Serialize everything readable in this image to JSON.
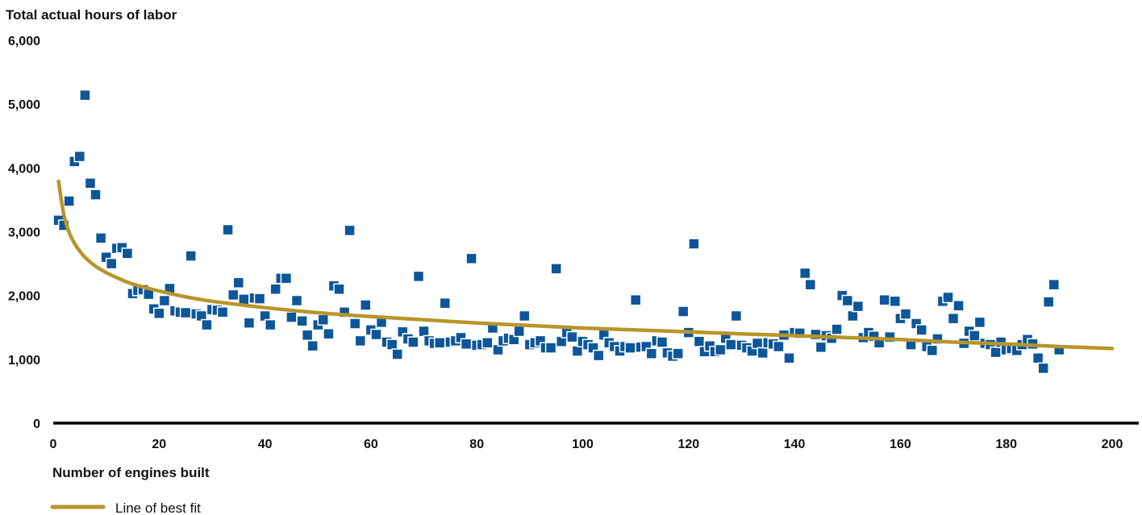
{
  "chart_data": {
    "type": "scatter",
    "title": "",
    "ylabel": "Total actual hours of labor",
    "xlabel": "Number of engines built",
    "xlim": [
      0,
      200
    ],
    "ylim": [
      0,
      6000
    ],
    "xticks": [
      "0",
      "20",
      "40",
      "60",
      "80",
      "100",
      "120",
      "140",
      "160",
      "180",
      "200"
    ],
    "yticks": [
      "0",
      "1,000",
      "2,000",
      "3,000",
      "4,000",
      "5,000",
      "6,000"
    ],
    "grid": false,
    "legend_position": "bottom-left",
    "colors": {
      "points": "#0d5699",
      "fit": "#b8952a",
      "axis": "#000000"
    },
    "series": [
      {
        "type": "scatter",
        "x": [
          1,
          2,
          3,
          4,
          5,
          6,
          7,
          8,
          9,
          10,
          11,
          12,
          13,
          14,
          15,
          16,
          17,
          18,
          19,
          20,
          21,
          22,
          23,
          24,
          25,
          26,
          27,
          28,
          29,
          30,
          31,
          32,
          33,
          34,
          35,
          36,
          37,
          38,
          39,
          40,
          41,
          42,
          43,
          44,
          45,
          46,
          47,
          48,
          49,
          50,
          51,
          52,
          53,
          54,
          55,
          56,
          57,
          58,
          59,
          60,
          61,
          62,
          63,
          64,
          65,
          66,
          67,
          68,
          69,
          70,
          71,
          72,
          73,
          74,
          75,
          76,
          77,
          78,
          79,
          80,
          81,
          82,
          83,
          84,
          85,
          86,
          87,
          88,
          89,
          90,
          91,
          92,
          93,
          94,
          95,
          96,
          97,
          98,
          99,
          100,
          101,
          102,
          103,
          104,
          105,
          106,
          107,
          108,
          109,
          110,
          111,
          112,
          113,
          114,
          115,
          116,
          117,
          118,
          119,
          120,
          121,
          122,
          123,
          124,
          125,
          126,
          127,
          128,
          129,
          130,
          131,
          132,
          133,
          134,
          135,
          136,
          137,
          138,
          139,
          140,
          141,
          142,
          143,
          144,
          145,
          146,
          147,
          148,
          149,
          150,
          151,
          152,
          153,
          154,
          155,
          156,
          157,
          158,
          159,
          160,
          161,
          162,
          163,
          164,
          165,
          166,
          167,
          168,
          169,
          170,
          171,
          172,
          173,
          174,
          175,
          176,
          177,
          178,
          179,
          180,
          181,
          182,
          183,
          184,
          185,
          186,
          187,
          188,
          189,
          190
        ],
        "y": [
          3180,
          3100,
          3480,
          4100,
          4180,
          5140,
          3760,
          3580,
          2900,
          2600,
          2500,
          2740,
          2750,
          2660,
          2030,
          2080,
          2090,
          2020,
          1790,
          1720,
          1920,
          2110,
          1760,
          1740,
          1730,
          2620,
          1710,
          1680,
          1540,
          1780,
          1770,
          1740,
          3030,
          2010,
          2200,
          1940,
          1570,
          1960,
          1950,
          1680,
          1540,
          2100,
          2270,
          2270,
          1660,
          1920,
          1600,
          1380,
          1210,
          1540,
          1620,
          1400,
          2150,
          2100,
          1740,
          3020,
          1560,
          1290,
          1850,
          1460,
          1390,
          1580,
          1270,
          1230,
          1080,
          1430,
          1320,
          1270,
          2300,
          1440,
          1290,
          1250,
          1260,
          1880,
          1270,
          1290,
          1340,
          1240,
          2580,
          1220,
          1230,
          1260,
          1490,
          1150,
          1290,
          1330,
          1310,
          1440,
          1680,
          1230,
          1260,
          1290,
          1180,
          1180,
          2420,
          1280,
          1420,
          1350,
          1130,
          1280,
          1230,
          1180,
          1060,
          1380,
          1260,
          1200,
          1130,
          1200,
          1180,
          1930,
          1190,
          1200,
          1090,
          1290,
          1270,
          1100,
          1050,
          1090,
          1750,
          1420,
          2810,
          1280,
          1120,
          1210,
          1120,
          1150,
          1330,
          1230,
          1680,
          1220,
          1180,
          1130,
          1250,
          1100,
          1260,
          1240,
          1200,
          1380,
          1020,
          1420,
          1410,
          2350,
          2170,
          1390,
          1190,
          1370,
          1330,
          1470,
          2000,
          1920,
          1680,
          1830,
          1340,
          1420,
          1360,
          1260,
          1930,
          1350,
          1910,
          1640,
          1710,
          1230,
          1560,
          1460,
          1200,
          1140,
          1320,
          1910,
          1970,
          1640,
          1840,
          1250,
          1440,
          1370,
          1580,
          1250,
          1230,
          1110,
          1270,
          1150,
          1170,
          1140,
          1230,
          1310,
          1240,
          1020,
          860,
          1900,
          2170,
          1150
        ]
      },
      {
        "name": "Line of best fit",
        "type": "line",
        "x": [
          1,
          2,
          3,
          4,
          5,
          6,
          8,
          10,
          12,
          15,
          20,
          25,
          30,
          40,
          50,
          60,
          70,
          80,
          90,
          100,
          110,
          120,
          130,
          140,
          150,
          160,
          170,
          180,
          190,
          200
        ],
        "y": [
          3790,
          3270,
          2990,
          2820,
          2700,
          2600,
          2460,
          2360,
          2280,
          2180,
          2070,
          1980,
          1910,
          1810,
          1730,
          1670,
          1620,
          1570,
          1530,
          1490,
          1460,
          1430,
          1400,
          1370,
          1340,
          1310,
          1270,
          1240,
          1200,
          1170
        ]
      }
    ]
  },
  "legend": {
    "label": "Line of best fit"
  }
}
